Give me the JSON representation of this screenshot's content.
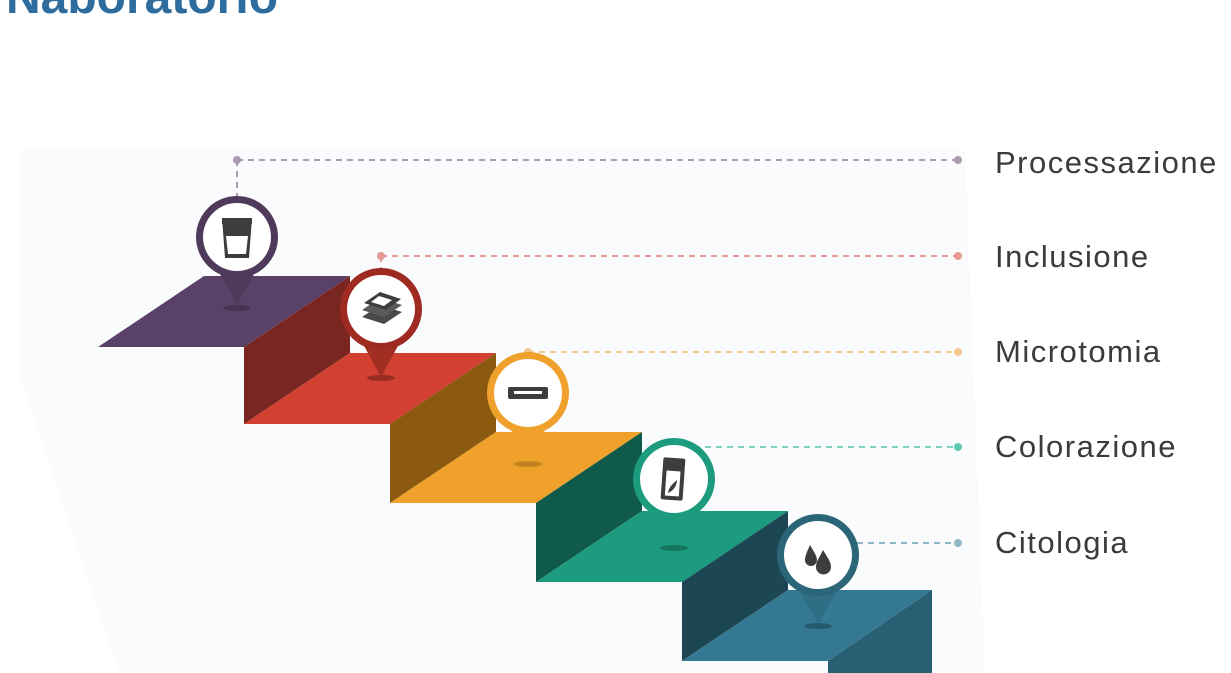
{
  "title": "Naboratorio",
  "steps": [
    {
      "label": "Processazione",
      "color": "#4f3a5c",
      "icon": "glass-icon"
    },
    {
      "label": "Inclusione",
      "color": "#cf3d2e",
      "icon": "cassette-stack-icon"
    },
    {
      "label": "Microtomia",
      "color": "#f0a12b",
      "icon": "microtome-blade-icon"
    },
    {
      "label": "Colorazione",
      "color": "#1b9b7e",
      "icon": "slide-icon"
    },
    {
      "label": "Citologia",
      "color": "#2f6e84",
      "icon": "droplets-icon"
    }
  ]
}
